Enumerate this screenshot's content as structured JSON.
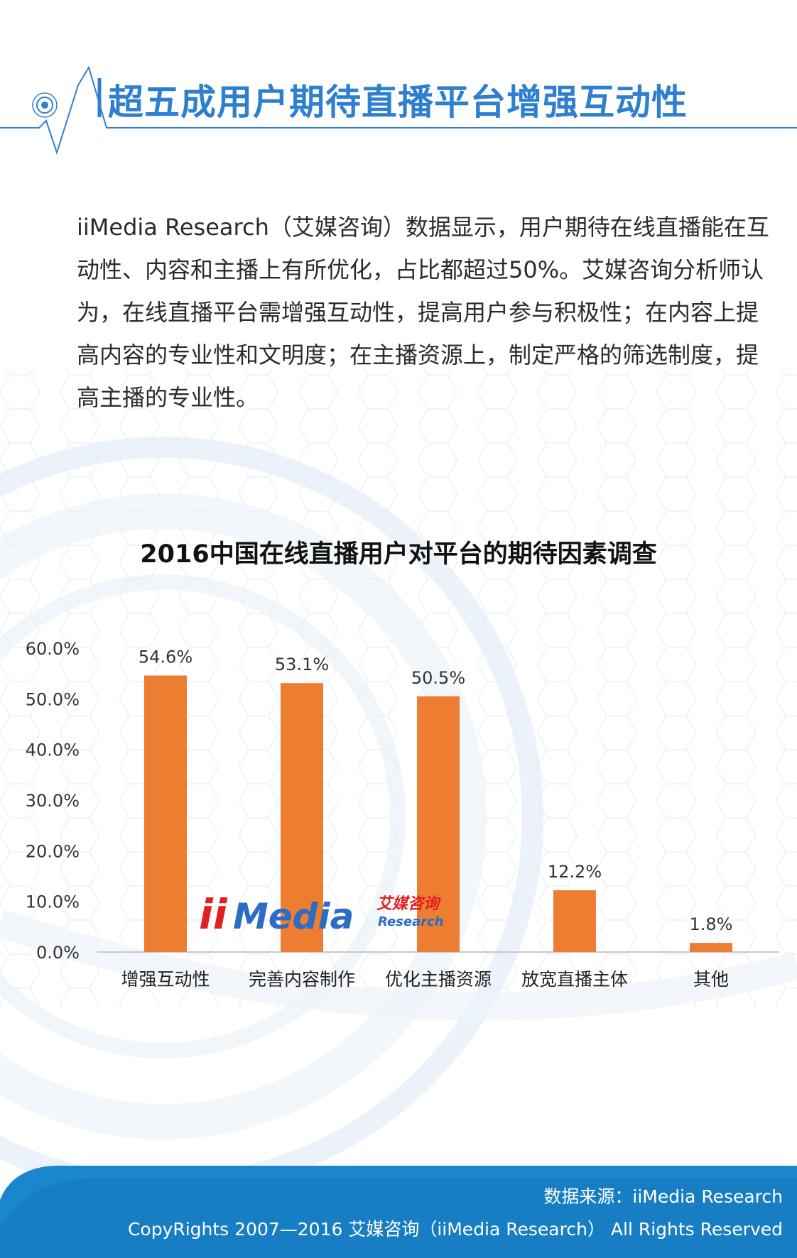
{
  "page": {
    "title": "超五成用户期待直播平台增强互动性",
    "intro": "iiMedia Research（艾媒咨询）数据显示，用户期待在线直播能在互动性、内容和主播上有所优化，占比都超过50%。艾媒咨询分析师认为，在线直播平台需增强互动性，提高用户参与积极性；在内容上提高内容的专业性和文明度；在主播资源上，制定严格的筛选制度，提高主播的专业性。"
  },
  "colors": {
    "accent": "#2f7fd1",
    "bar": "#ed7d31",
    "footer": "#1a86cc"
  },
  "watermark": {
    "brand": "iiMedia",
    "cn": "艾媒咨询",
    "en": "Research"
  },
  "chart_data": {
    "type": "bar",
    "title": "2016中国在线直播用户对平台的期待因素调查",
    "categories": [
      "增强互动性",
      "完善内容制作",
      "优化主播资源",
      "放宽直播主体",
      "其他"
    ],
    "values": [
      54.6,
      53.1,
      50.5,
      12.2,
      1.8
    ],
    "value_labels": [
      "54.6%",
      "53.1%",
      "50.5%",
      "12.2%",
      "1.8%"
    ],
    "ylim": [
      0,
      60
    ],
    "yticks": [
      "0.0%",
      "10.0%",
      "20.0%",
      "30.0%",
      "40.0%",
      "50.0%",
      "60.0%"
    ],
    "xlabel": "",
    "ylabel": "",
    "grid": false,
    "legend": "none"
  },
  "footer": {
    "source": "数据来源：iiMedia Research",
    "copyright": "CopyRights 2007—2016 艾媒咨询（iiMedia Research） All Rights Reserved"
  }
}
